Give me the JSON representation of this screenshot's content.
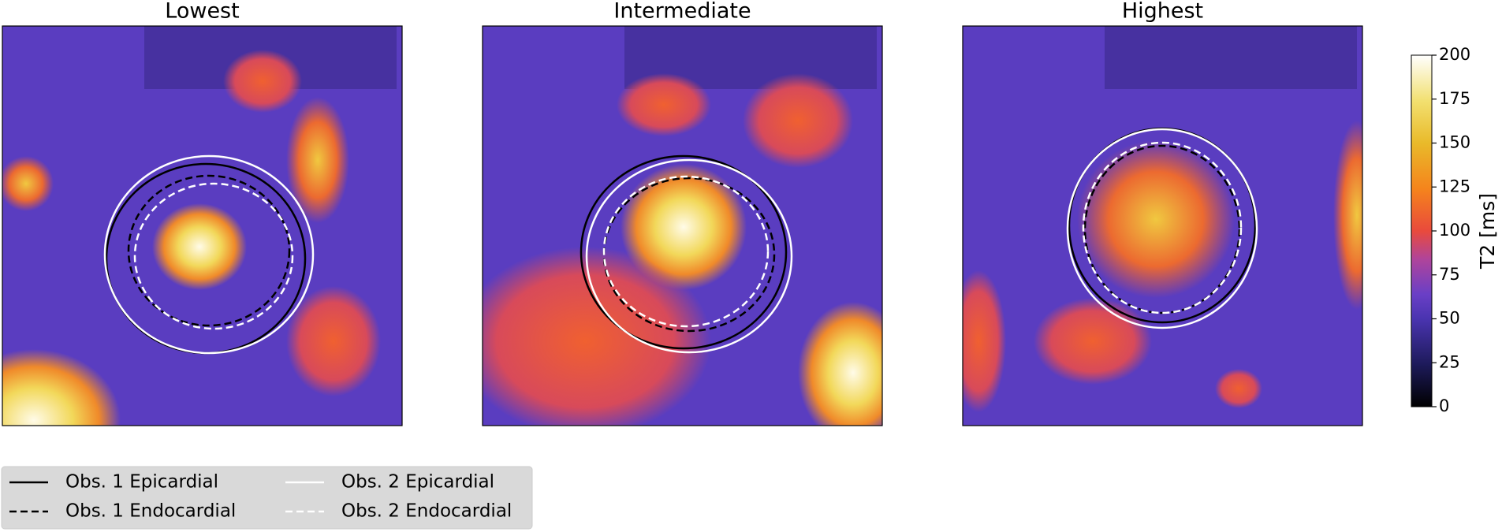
{
  "panels": [
    {
      "title": "Lowest"
    },
    {
      "title": "Intermediate"
    },
    {
      "title": "Highest"
    }
  ],
  "colorbar": {
    "label": "T2 [ms]",
    "lim": [
      0,
      200
    ],
    "ticks": [
      0,
      25,
      50,
      75,
      100,
      125,
      150,
      175,
      200
    ]
  },
  "legend": [
    {
      "label": "Obs. 1 Epicardial",
      "color": "#000000",
      "style": "solid"
    },
    {
      "label": "Obs. 1 Endocardial",
      "color": "#000000",
      "style": "dashed"
    },
    {
      "label": "Obs. 2 Epicardial",
      "color": "#ffffff",
      "style": "solid"
    },
    {
      "label": "Obs. 2 Endocardial",
      "color": "#ffffff",
      "style": "dashed"
    }
  ]
}
